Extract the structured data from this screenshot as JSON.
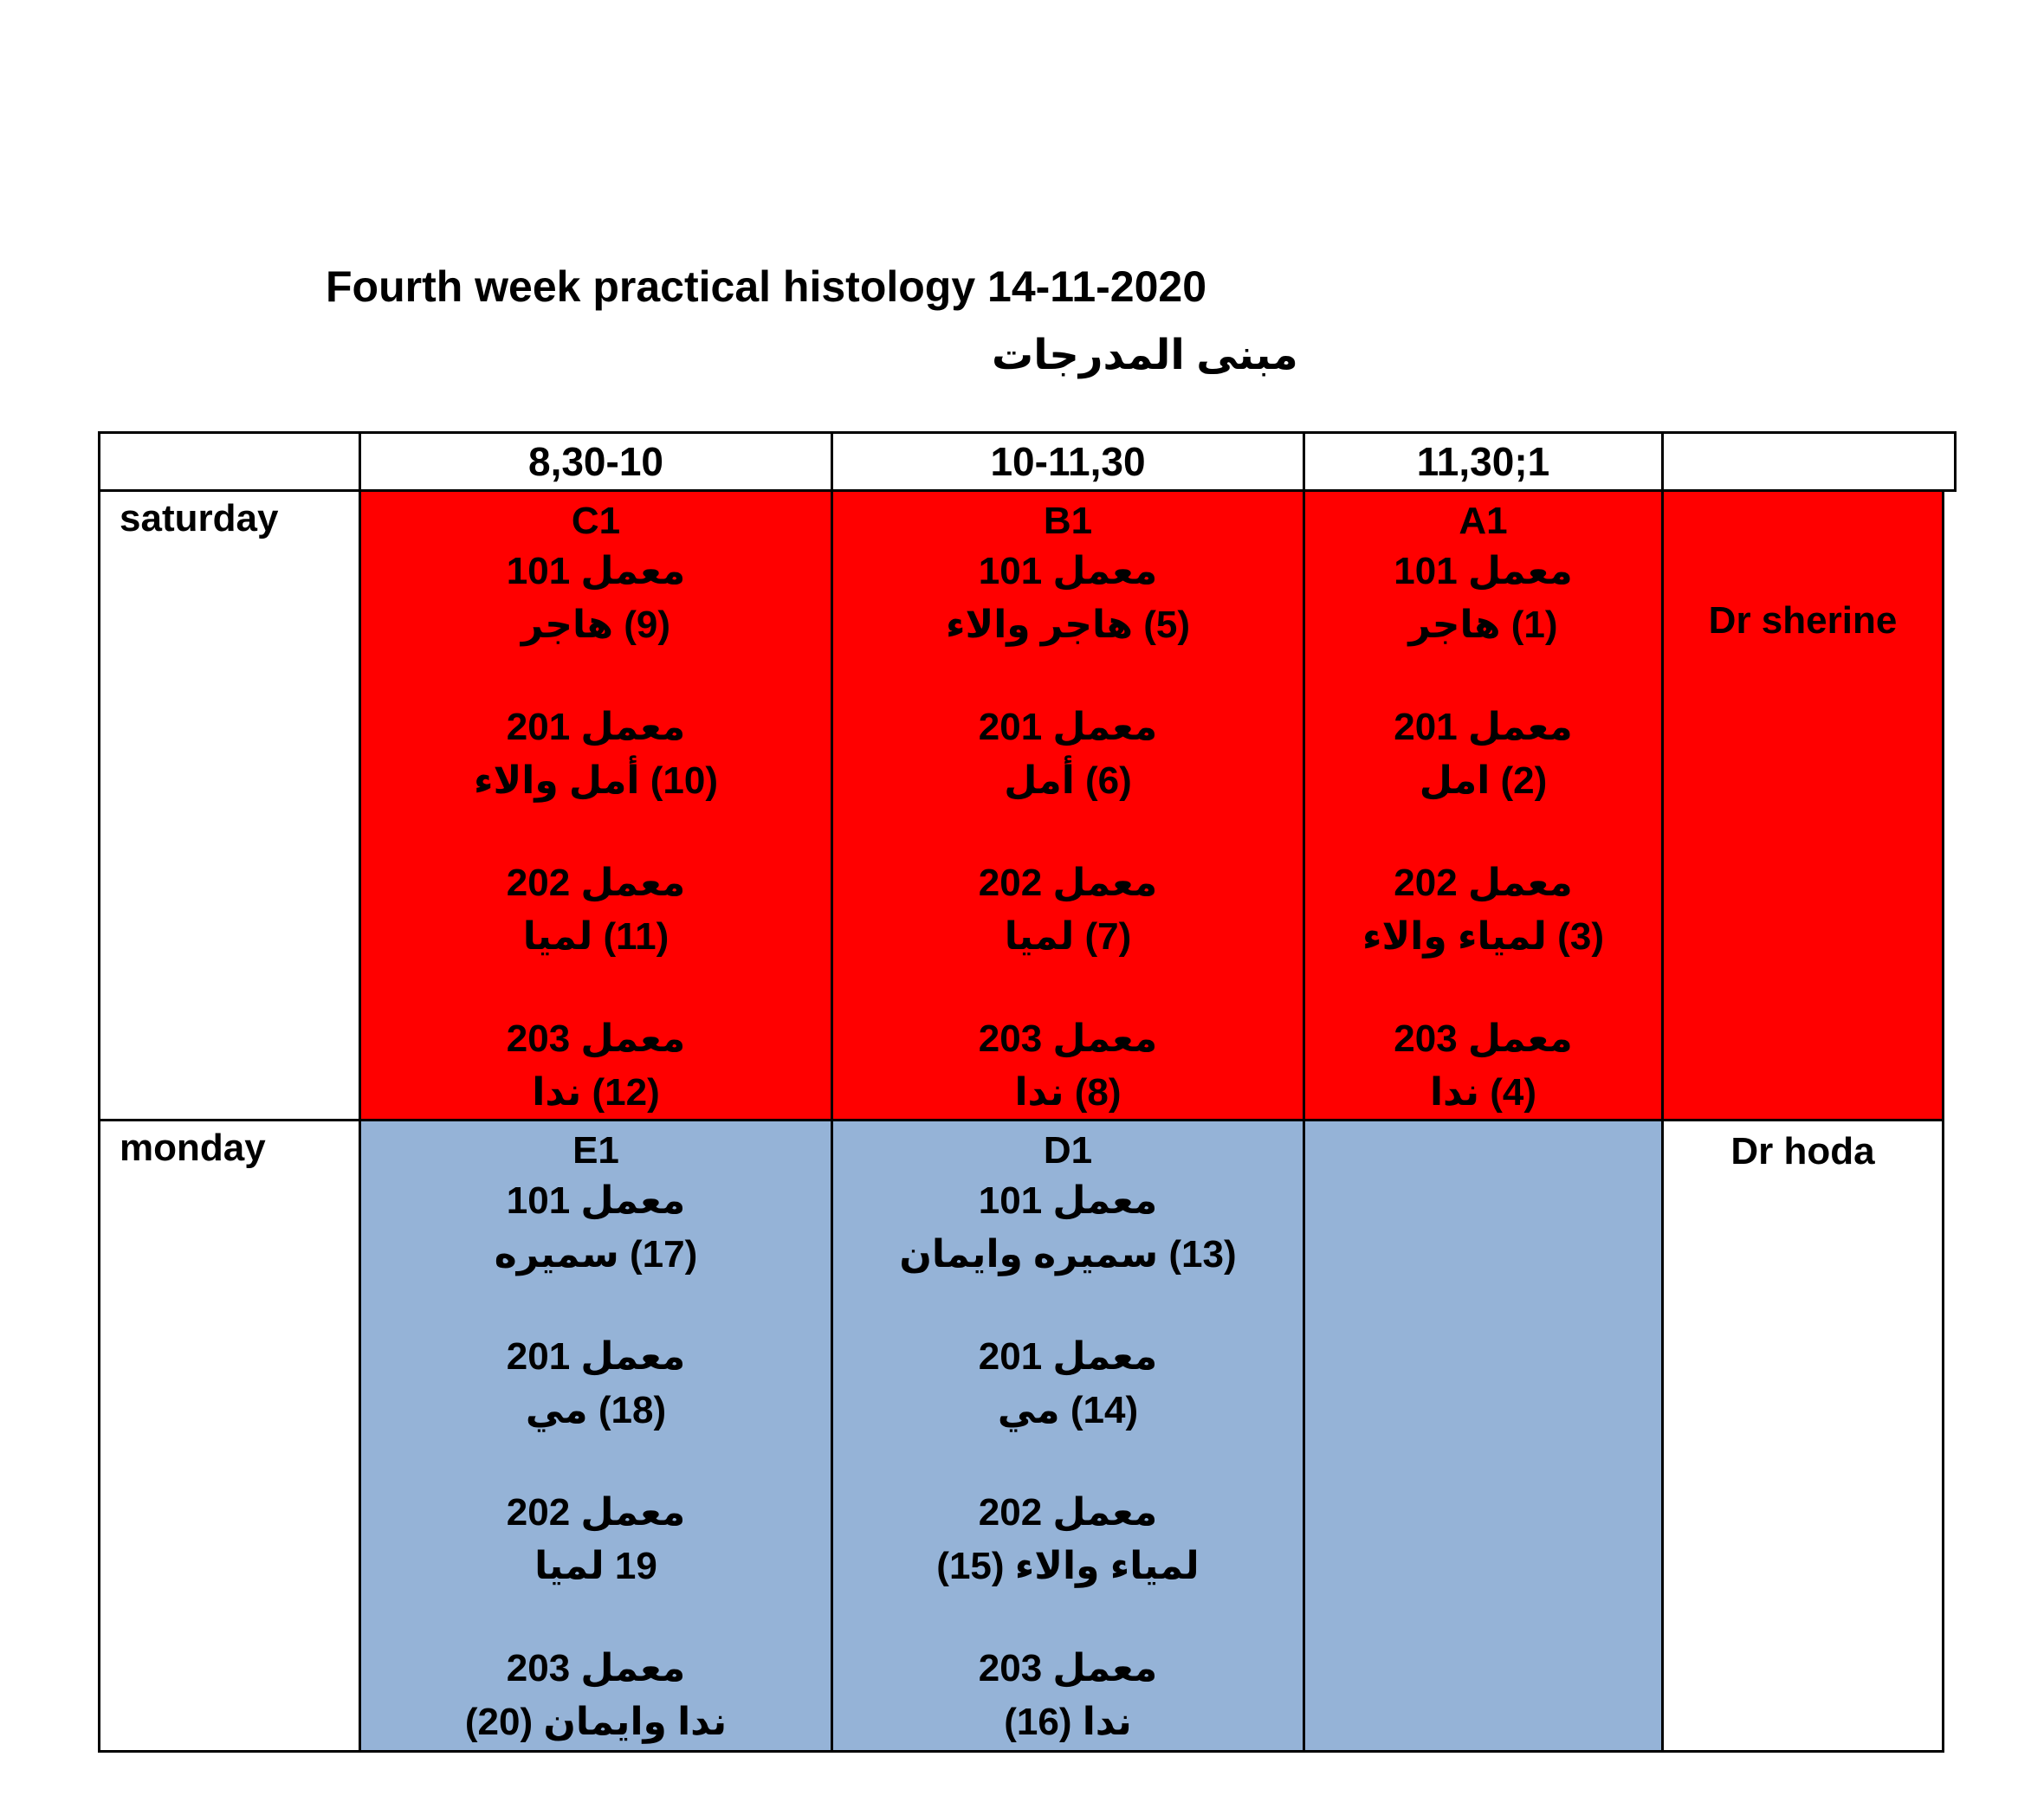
{
  "title": "Fourth week practical histology 14-11-2020",
  "subtitle": "مبنى المدرجات",
  "headers": [
    "",
    "8,30-10",
    "10-11,30",
    "11,30;1",
    ""
  ],
  "rows": [
    {
      "day": "saturday",
      "doctor": "Dr sherine",
      "color": "#ff0000",
      "slots": [
        {
          "code": "C1",
          "labs": [
            {
              "room": "معمل 101",
              "group": "(9)  هاجر"
            },
            {
              "room": "معمل 201",
              "group": "(10) أمل والاء"
            },
            {
              "room": "معمل 202",
              "group": "(11) لميا"
            },
            {
              "room": "معمل 203",
              "group": "(12) ندا"
            }
          ]
        },
        {
          "code": "B1",
          "labs": [
            {
              "room": "معمل 101",
              "group": "(5) هاجر والاء"
            },
            {
              "room": "معمل 201",
              "group": "(6) أمل"
            },
            {
              "room": "معمل 202",
              "group": "(7) لميا"
            },
            {
              "room": "معمل 203",
              "group": "(8) ندا"
            }
          ]
        },
        {
          "code": "A1",
          "labs": [
            {
              "room": "معمل 101",
              "group": "(1) هاجر"
            },
            {
              "room": "معمل 201",
              "group": "(2) امل"
            },
            {
              "room": "معمل 202",
              "group": "(3) لمياء والاء"
            },
            {
              "room": "معمل 203",
              "group": "(4) ندا"
            }
          ]
        }
      ]
    },
    {
      "day": "monday",
      "doctor": "Dr hoda",
      "color": "#95b3d7",
      "slots": [
        {
          "code": "E1",
          "labs": [
            {
              "room": "معمل 101",
              "group": "(17) سميره"
            },
            {
              "room": "معمل 201",
              "group": "(18) مي"
            },
            {
              "room": "معمل 202",
              "group": "19 لميا"
            },
            {
              "room": "معمل 203",
              "group": "ندا وايمان (20)"
            }
          ]
        },
        {
          "code": "D1",
          "labs": [
            {
              "room": "معمل 101",
              "group": "(13) سميره وايمان"
            },
            {
              "room": "معمل 201",
              "group": "(14) مي"
            },
            {
              "room": "معمل 202",
              "group": "لمياء والاء (15)"
            },
            {
              "room": "معمل 203",
              "group": "ندا (16)"
            }
          ]
        }
      ]
    }
  ]
}
